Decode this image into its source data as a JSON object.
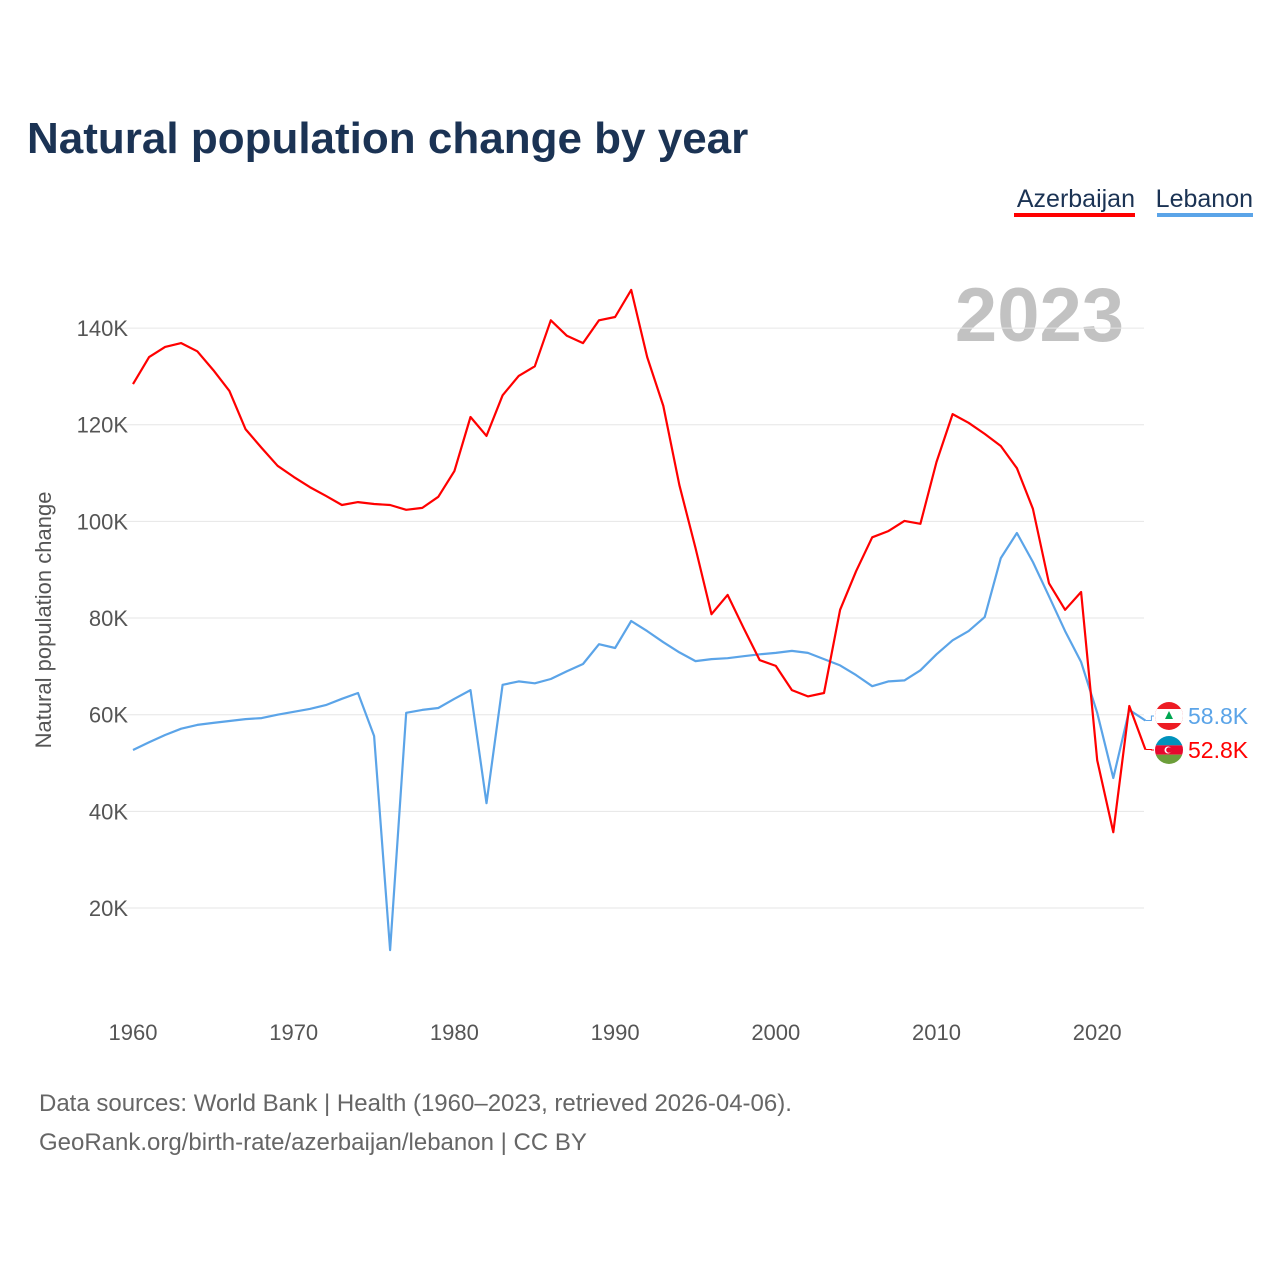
{
  "chart_data": {
    "type": "line",
    "title": "Natural population change by year",
    "xlabel": "",
    "ylabel": "Natural population change",
    "xlim": [
      1960,
      2023
    ],
    "ylim": [
      0,
      150000
    ],
    "x_ticks": [
      "1960",
      "1970",
      "1980",
      "1990",
      "2000",
      "2010",
      "2020"
    ],
    "y_ticks": [
      {
        "value": 20000,
        "label": "20K"
      },
      {
        "value": 40000,
        "label": "40K"
      },
      {
        "value": 60000,
        "label": "60K"
      },
      {
        "value": 80000,
        "label": "80K"
      },
      {
        "value": 100000,
        "label": "100K"
      },
      {
        "value": 120000,
        "label": "120K"
      },
      {
        "value": 140000,
        "label": "140K"
      }
    ],
    "grid": true,
    "legend_placement": "top-right",
    "year_label": "2023",
    "x_start": 1960,
    "series": [
      {
        "name": "Azerbaijan",
        "color": "#ff0000",
        "flag": "azerbaijan-flag",
        "end_label": "52.8K",
        "values": [
          128.4,
          134,
          136.1,
          136.9,
          135.2,
          131.3,
          127,
          119.1,
          115.2,
          111.5,
          109.2,
          107.1,
          105.3,
          103.4,
          104,
          103.6,
          103.4,
          102.4,
          102.8,
          105.1,
          110.4,
          121.6,
          117.7,
          126.1,
          130.1,
          132.1,
          141.6,
          138.4,
          136.9,
          141.6,
          142.3,
          147.9,
          134,
          123.9,
          107.5,
          94.5,
          80.8,
          84.8,
          77.9,
          71.3,
          70.1,
          65.1,
          63.8,
          64.5,
          81.7,
          89.7,
          96.7,
          98,
          100.1,
          99.5,
          112.3,
          122.2,
          120.4,
          118.1,
          115.6,
          111,
          102.6,
          87.2,
          81.7,
          85.4,
          50.6,
          35.7,
          61.8,
          52.8
        ]
      },
      {
        "name": "Lebanon",
        "color": "#5ba4e8",
        "flag": "lebanon-flag",
        "end_label": "58.8K",
        "values": [
          52.7,
          54.3,
          55.8,
          57.1,
          57.9,
          58.3,
          58.7,
          59.1,
          59.3,
          60,
          60.6,
          61.2,
          62,
          63.3,
          64.5,
          55.6,
          11.3,
          60.4,
          61,
          61.4,
          63.3,
          65.1,
          41.7,
          66.2,
          66.9,
          66.5,
          67.4,
          69,
          70.5,
          74.6,
          73.8,
          79.4,
          77.3,
          75,
          72.9,
          71.1,
          71.5,
          71.7,
          72.1,
          72.5,
          72.8,
          73.2,
          72.8,
          71.5,
          70.2,
          68.2,
          65.9,
          66.9,
          67.1,
          69.2,
          72.5,
          75.4,
          77.3,
          80.2,
          92.4,
          97.6,
          91.6,
          84.5,
          77.3,
          70.9,
          60.4,
          46.9,
          61,
          58.8
        ]
      }
    ],
    "value_unit": "thousands"
  },
  "footer": {
    "line1": "Data sources: World Bank | Health (1960–2023, retrieved 2026-04-06).",
    "line2": "GeoRank.org/birth-rate/azerbaijan/lebanon | CC BY"
  }
}
